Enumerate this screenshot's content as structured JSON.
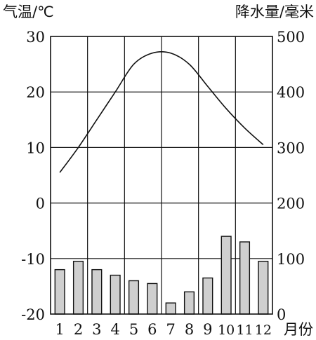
{
  "chart_data": {
    "type": "bar+line",
    "categories": [
      "1",
      "2",
      "3",
      "4",
      "5",
      "6",
      "7",
      "8",
      "9",
      "10",
      "11",
      "12"
    ],
    "xlabel": "月份",
    "left_axis": {
      "label": "气温/℃",
      "range": [
        -20,
        30
      ],
      "ticks": [
        "30",
        "20",
        "10",
        "0",
        "-10",
        "-20"
      ]
    },
    "right_axis": {
      "label": "降水量/毫米",
      "range": [
        0,
        500
      ],
      "ticks": [
        "500",
        "400",
        "300",
        "200",
        "100",
        "0"
      ]
    },
    "temperature": [
      5.5,
      10,
      15,
      20,
      25,
      27,
      27,
      25,
      21,
      17,
      13.5,
      10.5
    ],
    "precipitation": [
      80,
      95,
      80,
      70,
      60,
      55,
      20,
      40,
      65,
      140,
      130,
      95
    ],
    "grid": true,
    "colors": {
      "bar_fill": "#cfcfcf",
      "stroke": "#111111"
    }
  }
}
